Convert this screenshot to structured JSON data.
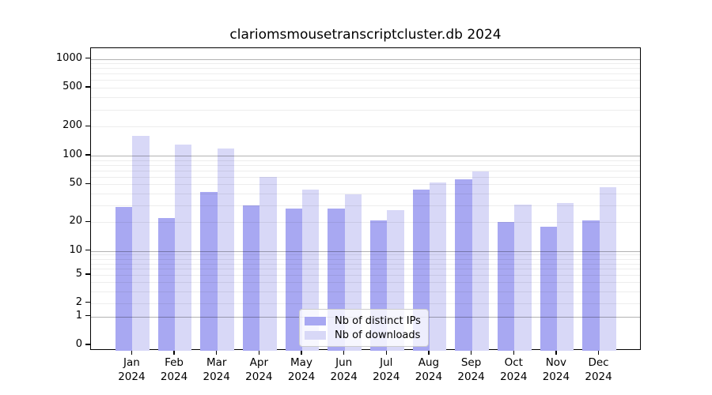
{
  "chart_data": {
    "type": "bar",
    "title": "clariomsmousetranscriptcluster.db 2024",
    "categories": [
      "Jan 2024",
      "Feb 2024",
      "Mar 2024",
      "Apr 2024",
      "May 2024",
      "Jun 2024",
      "Jul 2024",
      "Aug 2024",
      "Sep 2024",
      "Oct 2024",
      "Nov 2024",
      "Dec 2024"
    ],
    "series": [
      {
        "name": "Nb of distinct IPs",
        "color": "#a8a8f2",
        "values": [
          29,
          22,
          42,
          30,
          28,
          28,
          21,
          44,
          56,
          20,
          18,
          21
        ]
      },
      {
        "name": "Nb of downloads",
        "color": "#d8d8f7",
        "values": [
          160,
          130,
          118,
          60,
          44,
          39,
          27,
          52,
          68,
          31,
          32,
          47
        ]
      }
    ],
    "yscale": "symlog",
    "y_ticks": [
      0,
      1,
      2,
      5,
      10,
      20,
      50,
      100,
      200,
      500,
      1000
    ],
    "y_minor_gridlines": [
      3,
      4,
      6,
      7,
      8,
      9,
      30,
      40,
      60,
      70,
      80,
      90,
      300,
      400,
      600,
      700,
      800,
      900
    ],
    "ylim": [
      0,
      1300
    ],
    "grid": true,
    "legend_position": "lower center"
  }
}
